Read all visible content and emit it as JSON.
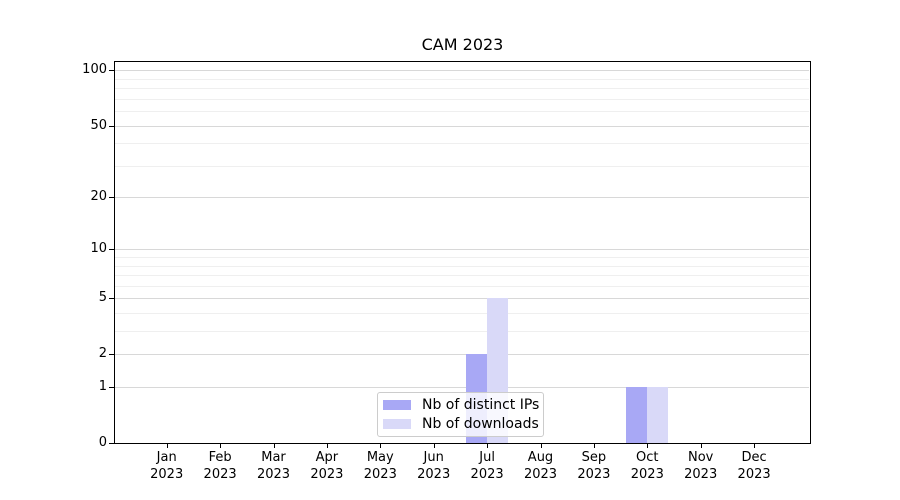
{
  "window": {
    "background": "#ffffff"
  },
  "chart_data": {
    "type": "bar",
    "title": "CAM 2023",
    "x_tick_months": [
      "Jan",
      "Feb",
      "Mar",
      "Apr",
      "May",
      "Jun",
      "Jul",
      "Aug",
      "Sep",
      "Oct",
      "Nov",
      "Dec"
    ],
    "x_tick_year": "2023",
    "series": [
      {
        "name": "Nb of distinct IPs",
        "color": "#a8a8f5",
        "values": [
          0,
          0,
          0,
          0,
          0,
          0,
          2,
          0,
          0,
          1,
          0,
          0
        ]
      },
      {
        "name": "Nb of downloads",
        "color": "#d9d9f8",
        "values": [
          0,
          0,
          0,
          0,
          0,
          0,
          5,
          0,
          0,
          1,
          0,
          0
        ]
      }
    ],
    "y_scale": "log1p",
    "ylim": [
      0,
      111
    ],
    "y_major_ticks": [
      0,
      1,
      2,
      5,
      10,
      20,
      50,
      100
    ],
    "y_minor_gridlines": [
      3,
      4,
      6,
      7,
      8,
      9,
      30,
      40,
      60,
      70,
      80,
      90
    ],
    "grid": "horizontal-only",
    "legend_position": "lower-center-inside"
  },
  "colors": {
    "bar_distinct_ips": "#a8a8f5",
    "bar_downloads": "#d9d9f8",
    "major_grid": "#d8d8d8",
    "minor_grid": "#efefef",
    "axis": "#000000",
    "legend_border": "#cccccc"
  }
}
